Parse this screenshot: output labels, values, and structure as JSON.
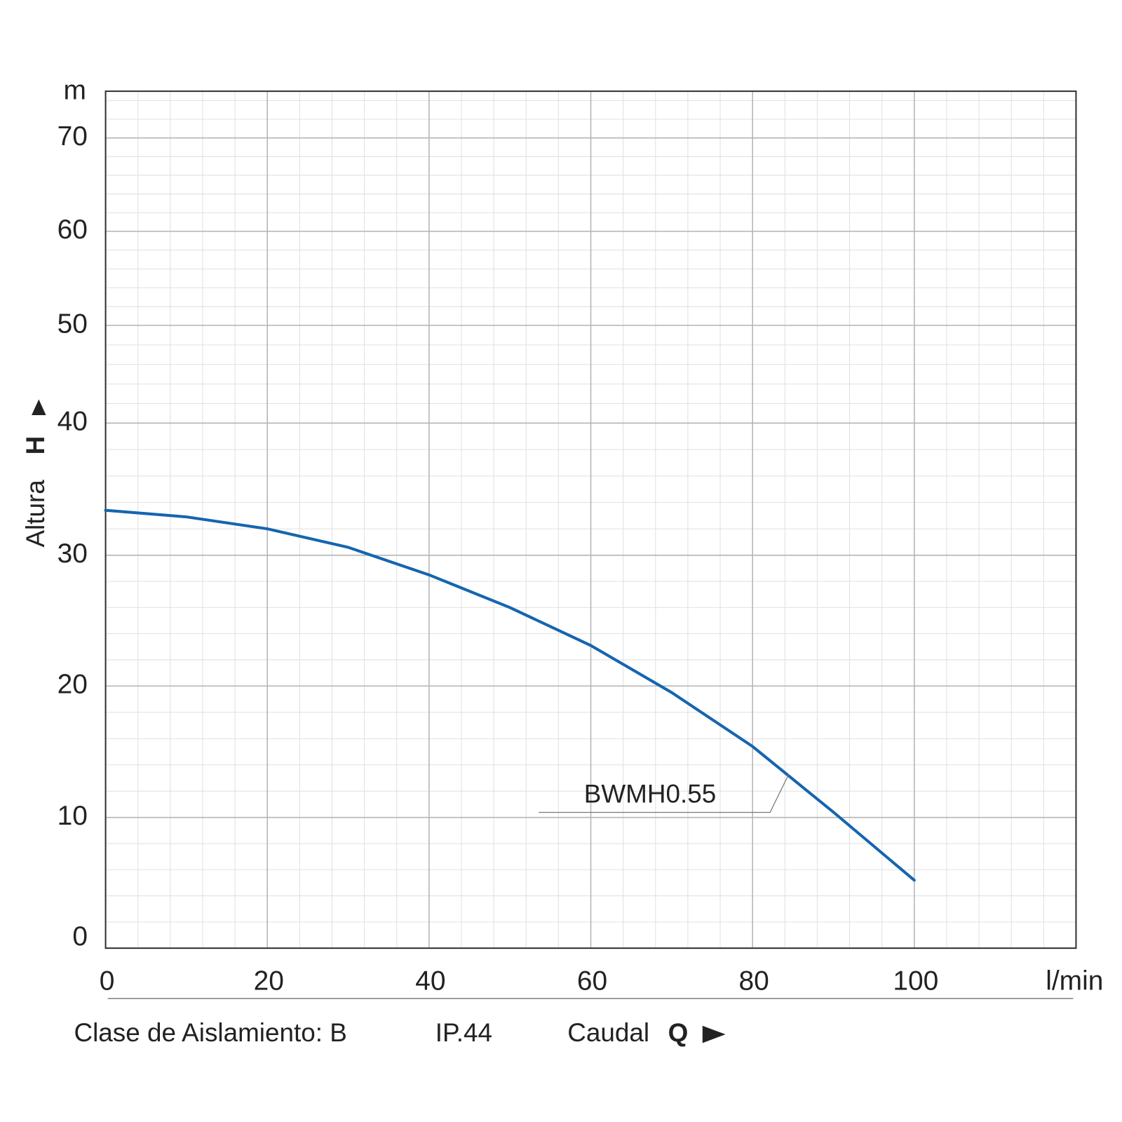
{
  "chart_data": {
    "type": "line",
    "y_unit": "m",
    "x_unit": "l/min",
    "y_label": "Altura",
    "y_symbol": "H",
    "x_label": "Caudal",
    "x_symbol": "Q",
    "footer": [
      "Clase de Aislamiento: B",
      "IP.44"
    ],
    "x": [
      0,
      10,
      20,
      30,
      40,
      50,
      60,
      70,
      80,
      90,
      100
    ],
    "series": [
      {
        "name": "BWMH0.55",
        "color": "#1565b0",
        "values": [
          33.4,
          32.9,
          32.0,
          30.6,
          28.5,
          26.0,
          23.1,
          19.5,
          15.4,
          10.4,
          5.2
        ]
      }
    ],
    "xlim": [
      0,
      120
    ],
    "xticks": [
      0,
      20,
      40,
      60,
      80,
      100
    ],
    "ylim": [
      0,
      75
    ],
    "yticks": [
      0,
      10,
      20,
      30,
      40,
      50,
      60,
      70
    ],
    "grid": true,
    "minor_grid": {
      "x": 4,
      "y": 2
    }
  }
}
